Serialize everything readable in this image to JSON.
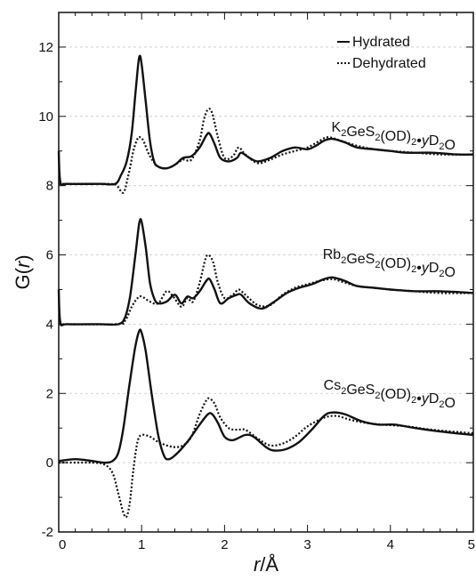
{
  "chart_data": {
    "type": "line",
    "xlabel_var": "r",
    "xlabel_unit": "/Å",
    "ylabel_var": "r",
    "ylabel_prefix": "G(",
    "ylabel_suffix": ")",
    "xlim": [
      0,
      5
    ],
    "ylim": [
      -2,
      13
    ],
    "xticks": [
      0,
      1,
      2,
      3,
      4,
      5
    ],
    "yticks": [
      -2,
      0,
      2,
      4,
      6,
      8,
      10,
      12
    ],
    "grid": "horizontal dashed at major y ticks",
    "legend": {
      "placement": "top-right",
      "entries": [
        {
          "label": "Hydrated",
          "style": "solid"
        },
        {
          "label": "Dehydrated",
          "style": "dotted"
        }
      ]
    },
    "annotations": [
      {
        "id": "k",
        "parts": [
          [
            "K",
            "n"
          ],
          [
            "2",
            "sub"
          ],
          [
            "GeS",
            "n"
          ],
          [
            "2",
            "sub"
          ],
          [
            "(OD)",
            "n"
          ],
          [
            "2",
            "sub"
          ],
          [
            "•",
            "n"
          ],
          [
            "y",
            "i"
          ],
          [
            "D",
            "n"
          ],
          [
            "2",
            "sub"
          ],
          [
            "O",
            "n"
          ]
        ]
      },
      {
        "id": "rb",
        "parts": [
          [
            "Rb",
            "n"
          ],
          [
            "2",
            "sub"
          ],
          [
            "GeS",
            "n"
          ],
          [
            "2",
            "sub"
          ],
          [
            "(OD)",
            "n"
          ],
          [
            "2",
            "sub"
          ],
          [
            "•",
            "n"
          ],
          [
            "y",
            "i"
          ],
          [
            "D",
            "n"
          ],
          [
            "2",
            "sub"
          ],
          [
            "O",
            "n"
          ]
        ]
      },
      {
        "id": "cs",
        "parts": [
          [
            "Cs",
            "n"
          ],
          [
            "2",
            "sub"
          ],
          [
            "GeS",
            "n"
          ],
          [
            "2",
            "sub"
          ],
          [
            "(OD)",
            "n"
          ],
          [
            "2",
            "sub"
          ],
          [
            "•",
            "n"
          ],
          [
            "y",
            "i"
          ],
          [
            "D",
            "n"
          ],
          [
            "2",
            "sub"
          ],
          [
            "O",
            "n"
          ]
        ]
      }
    ],
    "series": [
      {
        "name": "Hydrated",
        "group": "k",
        "style": "solid",
        "points": [
          [
            0,
            9.0
          ],
          [
            0.02,
            8.1
          ],
          [
            0.1,
            8.05
          ],
          [
            0.5,
            8.05
          ],
          [
            0.68,
            8.05
          ],
          [
            0.75,
            8.3
          ],
          [
            0.82,
            8.7
          ],
          [
            0.88,
            9.5
          ],
          [
            0.93,
            10.8
          ],
          [
            0.97,
            11.7
          ],
          [
            1.0,
            11.5
          ],
          [
            1.05,
            10.4
          ],
          [
            1.1,
            9.3
          ],
          [
            1.15,
            8.7
          ],
          [
            1.2,
            8.55
          ],
          [
            1.3,
            8.5
          ],
          [
            1.4,
            8.6
          ],
          [
            1.5,
            8.8
          ],
          [
            1.6,
            8.85
          ],
          [
            1.7,
            9.1
          ],
          [
            1.78,
            9.45
          ],
          [
            1.82,
            9.5
          ],
          [
            1.88,
            9.2
          ],
          [
            1.95,
            8.8
          ],
          [
            2.05,
            8.7
          ],
          [
            2.15,
            8.8
          ],
          [
            2.2,
            8.95
          ],
          [
            2.3,
            8.8
          ],
          [
            2.4,
            8.7
          ],
          [
            2.55,
            8.8
          ],
          [
            2.7,
            9.0
          ],
          [
            2.85,
            9.1
          ],
          [
            3.0,
            9.05
          ],
          [
            3.1,
            9.15
          ],
          [
            3.2,
            9.3
          ],
          [
            3.3,
            9.35
          ],
          [
            3.45,
            9.25
          ],
          [
            3.6,
            9.1
          ],
          [
            3.8,
            9.05
          ],
          [
            4.0,
            9.0
          ],
          [
            4.2,
            8.95
          ],
          [
            4.5,
            8.95
          ],
          [
            4.8,
            8.9
          ],
          [
            5.0,
            8.9
          ]
        ]
      },
      {
        "name": "Dehydrated",
        "group": "k",
        "style": "dotted",
        "points": [
          [
            0.0,
            8.05
          ],
          [
            0.6,
            8.05
          ],
          [
            0.7,
            8.0
          ],
          [
            0.78,
            7.8
          ],
          [
            0.84,
            8.3
          ],
          [
            0.9,
            9.0
          ],
          [
            0.95,
            9.35
          ],
          [
            0.98,
            9.4
          ],
          [
            1.02,
            9.3
          ],
          [
            1.1,
            8.85
          ],
          [
            1.2,
            8.55
          ],
          [
            1.3,
            8.5
          ],
          [
            1.4,
            8.6
          ],
          [
            1.5,
            8.75
          ],
          [
            1.6,
            8.75
          ],
          [
            1.7,
            9.3
          ],
          [
            1.75,
            9.9
          ],
          [
            1.8,
            10.2
          ],
          [
            1.85,
            10.1
          ],
          [
            1.92,
            9.4
          ],
          [
            2.0,
            8.8
          ],
          [
            2.1,
            8.85
          ],
          [
            2.17,
            9.1
          ],
          [
            2.25,
            8.9
          ],
          [
            2.4,
            8.65
          ],
          [
            2.55,
            8.75
          ],
          [
            2.7,
            8.9
          ],
          [
            2.85,
            9.0
          ],
          [
            3.0,
            9.1
          ],
          [
            3.15,
            9.3
          ],
          [
            3.25,
            9.4
          ],
          [
            3.4,
            9.3
          ],
          [
            3.6,
            9.15
          ],
          [
            3.8,
            9.05
          ],
          [
            4.0,
            9.0
          ],
          [
            4.3,
            8.95
          ],
          [
            4.6,
            8.9
          ],
          [
            5.0,
            8.9
          ]
        ]
      },
      {
        "name": "Hydrated",
        "group": "rb",
        "style": "solid",
        "points": [
          [
            0,
            5.0
          ],
          [
            0.02,
            4.05
          ],
          [
            0.1,
            4.0
          ],
          [
            0.5,
            4.0
          ],
          [
            0.72,
            4.0
          ],
          [
            0.8,
            4.2
          ],
          [
            0.86,
            4.8
          ],
          [
            0.92,
            5.9
          ],
          [
            0.97,
            6.9
          ],
          [
            1.0,
            6.95
          ],
          [
            1.05,
            6.2
          ],
          [
            1.1,
            5.2
          ],
          [
            1.15,
            4.75
          ],
          [
            1.2,
            4.6
          ],
          [
            1.3,
            4.65
          ],
          [
            1.4,
            4.85
          ],
          [
            1.48,
            4.6
          ],
          [
            1.55,
            4.8
          ],
          [
            1.62,
            4.75
          ],
          [
            1.7,
            4.95
          ],
          [
            1.78,
            5.25
          ],
          [
            1.82,
            5.3
          ],
          [
            1.88,
            5.0
          ],
          [
            1.95,
            4.6
          ],
          [
            2.05,
            4.75
          ],
          [
            2.15,
            4.85
          ],
          [
            2.2,
            4.85
          ],
          [
            2.3,
            4.6
          ],
          [
            2.45,
            4.45
          ],
          [
            2.6,
            4.65
          ],
          [
            2.75,
            4.9
          ],
          [
            2.9,
            5.05
          ],
          [
            3.05,
            5.15
          ],
          [
            3.2,
            5.3
          ],
          [
            3.3,
            5.35
          ],
          [
            3.45,
            5.25
          ],
          [
            3.6,
            5.1
          ],
          [
            3.8,
            5.05
          ],
          [
            4.0,
            5.0
          ],
          [
            4.3,
            4.95
          ],
          [
            4.6,
            4.95
          ],
          [
            5.0,
            4.9
          ]
        ]
      },
      {
        "name": "Dehydrated",
        "group": "rb",
        "style": "dotted",
        "points": [
          [
            0.0,
            4.0
          ],
          [
            0.7,
            4.0
          ],
          [
            0.8,
            4.1
          ],
          [
            0.88,
            4.5
          ],
          [
            0.95,
            4.75
          ],
          [
            1.0,
            4.8
          ],
          [
            1.1,
            4.65
          ],
          [
            1.2,
            4.6
          ],
          [
            1.3,
            4.95
          ],
          [
            1.38,
            4.8
          ],
          [
            1.48,
            4.5
          ],
          [
            1.55,
            4.75
          ],
          [
            1.62,
            4.65
          ],
          [
            1.7,
            5.2
          ],
          [
            1.76,
            5.8
          ],
          [
            1.8,
            6.0
          ],
          [
            1.86,
            5.8
          ],
          [
            1.92,
            5.2
          ],
          [
            2.0,
            4.75
          ],
          [
            2.1,
            4.85
          ],
          [
            2.17,
            5.0
          ],
          [
            2.25,
            4.85
          ],
          [
            2.4,
            4.55
          ],
          [
            2.55,
            4.55
          ],
          [
            2.7,
            4.85
          ],
          [
            2.85,
            5.05
          ],
          [
            3.0,
            5.15
          ],
          [
            3.15,
            5.25
          ],
          [
            3.3,
            5.3
          ],
          [
            3.45,
            5.2
          ],
          [
            3.6,
            5.1
          ],
          [
            3.8,
            5.05
          ],
          [
            4.0,
            5.0
          ],
          [
            4.3,
            4.95
          ],
          [
            4.6,
            4.9
          ],
          [
            5.0,
            4.9
          ]
        ]
      },
      {
        "name": "Hydrated",
        "group": "cs",
        "style": "solid",
        "points": [
          [
            0.0,
            0.05
          ],
          [
            0.2,
            0.1
          ],
          [
            0.4,
            0.05
          ],
          [
            0.55,
            0.0
          ],
          [
            0.65,
            0.05
          ],
          [
            0.72,
            0.3
          ],
          [
            0.78,
            1.0
          ],
          [
            0.85,
            2.2
          ],
          [
            0.92,
            3.3
          ],
          [
            0.97,
            3.8
          ],
          [
            1.0,
            3.75
          ],
          [
            1.05,
            3.2
          ],
          [
            1.12,
            2.0
          ],
          [
            1.2,
            0.8
          ],
          [
            1.27,
            0.2
          ],
          [
            1.33,
            0.1
          ],
          [
            1.42,
            0.25
          ],
          [
            1.55,
            0.6
          ],
          [
            1.7,
            1.1
          ],
          [
            1.8,
            1.4
          ],
          [
            1.85,
            1.4
          ],
          [
            1.92,
            1.15
          ],
          [
            2.0,
            0.75
          ],
          [
            2.1,
            0.65
          ],
          [
            2.25,
            0.8
          ],
          [
            2.35,
            0.75
          ],
          [
            2.5,
            0.45
          ],
          [
            2.6,
            0.35
          ],
          [
            2.75,
            0.4
          ],
          [
            2.9,
            0.6
          ],
          [
            3.05,
            0.95
          ],
          [
            3.2,
            1.35
          ],
          [
            3.3,
            1.45
          ],
          [
            3.45,
            1.4
          ],
          [
            3.65,
            1.2
          ],
          [
            3.85,
            1.1
          ],
          [
            4.05,
            1.1
          ],
          [
            4.3,
            1.0
          ],
          [
            4.6,
            0.9
          ],
          [
            5.0,
            0.8
          ]
        ]
      },
      {
        "name": "Dehydrated",
        "group": "cs",
        "style": "dotted",
        "points": [
          [
            0.0,
            0.0
          ],
          [
            0.4,
            0.0
          ],
          [
            0.55,
            -0.05
          ],
          [
            0.65,
            -0.3
          ],
          [
            0.72,
            -0.9
          ],
          [
            0.78,
            -1.45
          ],
          [
            0.82,
            -1.55
          ],
          [
            0.86,
            -1.1
          ],
          [
            0.9,
            -0.2
          ],
          [
            0.95,
            0.6
          ],
          [
            1.0,
            0.8
          ],
          [
            1.1,
            0.75
          ],
          [
            1.2,
            0.6
          ],
          [
            1.3,
            0.5
          ],
          [
            1.4,
            0.45
          ],
          [
            1.5,
            0.5
          ],
          [
            1.6,
            0.75
          ],
          [
            1.7,
            1.4
          ],
          [
            1.78,
            1.8
          ],
          [
            1.82,
            1.85
          ],
          [
            1.88,
            1.7
          ],
          [
            1.95,
            1.3
          ],
          [
            2.05,
            1.0
          ],
          [
            2.15,
            0.95
          ],
          [
            2.25,
            0.95
          ],
          [
            2.4,
            0.7
          ],
          [
            2.55,
            0.5
          ],
          [
            2.7,
            0.55
          ],
          [
            2.85,
            0.75
          ],
          [
            3.0,
            1.05
          ],
          [
            3.2,
            1.3
          ],
          [
            3.35,
            1.35
          ],
          [
            3.5,
            1.25
          ],
          [
            3.7,
            1.15
          ],
          [
            3.9,
            1.1
          ],
          [
            4.2,
            1.05
          ],
          [
            4.5,
            0.95
          ],
          [
            5.0,
            0.85
          ]
        ]
      }
    ]
  }
}
